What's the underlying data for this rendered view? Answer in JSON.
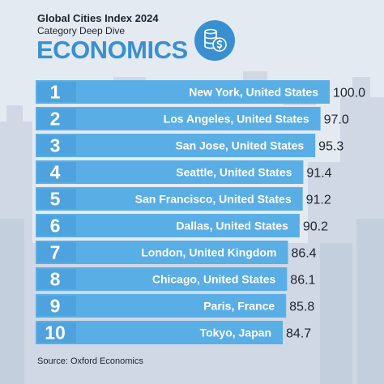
{
  "header": {
    "title": "Global Cities Index 2024",
    "subtitle": "Category Deep Dive",
    "heading": "ECONOMICS",
    "badge_icon": "coins-dollar-icon"
  },
  "colors": {
    "accent": "#3a8fd0",
    "bar": "#5aaee6",
    "bar_dark": "#3a8fd0",
    "background": "#e4eaf2",
    "text_dark": "#1c2430"
  },
  "footer": {
    "source": "Source: Oxford Economics"
  },
  "chart_data": {
    "type": "bar",
    "orientation": "horizontal",
    "categories": [
      "New York, United States",
      "Los Angeles, United States",
      "San Jose, United States",
      "Seattle, United States",
      "San Francisco, United States",
      "Dallas, United States",
      "London, United Kingdom",
      "Chicago, United States",
      "Paris, France",
      "Tokyo, Japan"
    ],
    "ranks": [
      "1",
      "2",
      "3",
      "4",
      "5",
      "6",
      "7",
      "8",
      "9",
      "10"
    ],
    "values": [
      100.0,
      97.0,
      95.3,
      91.4,
      91.2,
      90.2,
      86.4,
      86.1,
      85.8,
      84.7
    ],
    "value_labels": [
      "100.0",
      "97.0",
      "95.3",
      "91.4",
      "91.2",
      "90.2",
      "86.4",
      "86.1",
      "85.8",
      "84.7"
    ]
  }
}
